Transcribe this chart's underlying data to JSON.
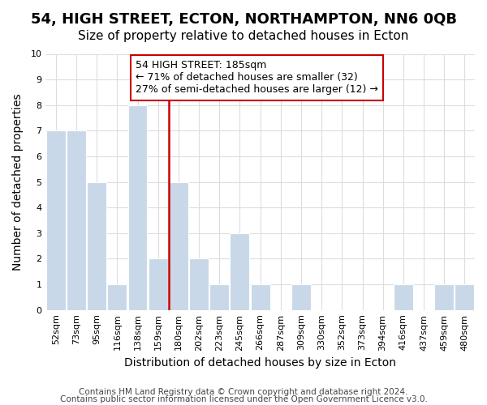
{
  "title": "54, HIGH STREET, ECTON, NORTHAMPTON, NN6 0QB",
  "subtitle": "Size of property relative to detached houses in Ecton",
  "xlabel": "Distribution of detached houses by size in Ecton",
  "ylabel": "Number of detached properties",
  "categories": [
    "52sqm",
    "73sqm",
    "95sqm",
    "116sqm",
    "138sqm",
    "159sqm",
    "180sqm",
    "202sqm",
    "223sqm",
    "245sqm",
    "266sqm",
    "287sqm",
    "309sqm",
    "330sqm",
    "352sqm",
    "373sqm",
    "394sqm",
    "416sqm",
    "437sqm",
    "459sqm",
    "480sqm"
  ],
  "values": [
    7,
    7,
    5,
    1,
    8,
    2,
    5,
    2,
    1,
    3,
    1,
    0,
    1,
    0,
    0,
    0,
    0,
    1,
    0,
    1,
    1
  ],
  "bar_color": "#c8d8e8",
  "bar_edge_color": "#ffffff",
  "highlight_line_color": "#cc0000",
  "annotation_line1": "54 HIGH STREET: 185sqm",
  "annotation_line2": "← 71% of detached houses are smaller (32)",
  "annotation_line3": "27% of semi-detached houses are larger (12) →",
  "ylim": [
    0,
    10
  ],
  "footer_line1": "Contains HM Land Registry data © Crown copyright and database right 2024.",
  "footer_line2": "Contains public sector information licensed under the Open Government Licence v3.0.",
  "title_fontsize": 13,
  "subtitle_fontsize": 11,
  "axis_label_fontsize": 10,
  "tick_fontsize": 8,
  "annotation_fontsize": 9,
  "footer_fontsize": 7.5,
  "background_color": "#ffffff",
  "grid_color": "#dddddd"
}
